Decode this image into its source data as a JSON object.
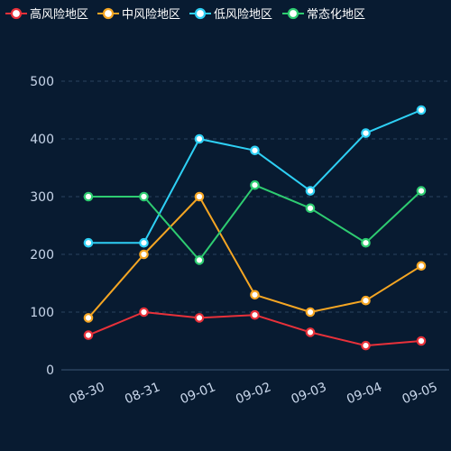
{
  "chart_data": {
    "type": "line",
    "categories": [
      "08-30",
      "08-31",
      "09-01",
      "09-02",
      "09-03",
      "09-04",
      "09-05"
    ],
    "series": [
      {
        "name": "高风险地区",
        "color": "#e8313a",
        "values": [
          60,
          100,
          90,
          95,
          65,
          42,
          50
        ]
      },
      {
        "name": "中风险地区",
        "color": "#f5a623",
        "values": [
          90,
          200,
          300,
          130,
          100,
          120,
          180
        ]
      },
      {
        "name": "低风险地区",
        "color": "#2ed0f5",
        "values": [
          220,
          220,
          400,
          380,
          310,
          410,
          450
        ]
      },
      {
        "name": "常态化地区",
        "color": "#2ecc71",
        "values": [
          300,
          300,
          190,
          320,
          280,
          220,
          310
        ]
      }
    ],
    "yticks": [
      "0",
      "100",
      "200",
      "300",
      "400",
      "500"
    ],
    "ylim": [
      0,
      500
    ],
    "grid": true,
    "legend_position": "top-left",
    "colors": {
      "background": "#081b31",
      "axis_label": "#c8d6ea",
      "grid": "#2a4360",
      "legend_text": "#ffffff"
    }
  }
}
